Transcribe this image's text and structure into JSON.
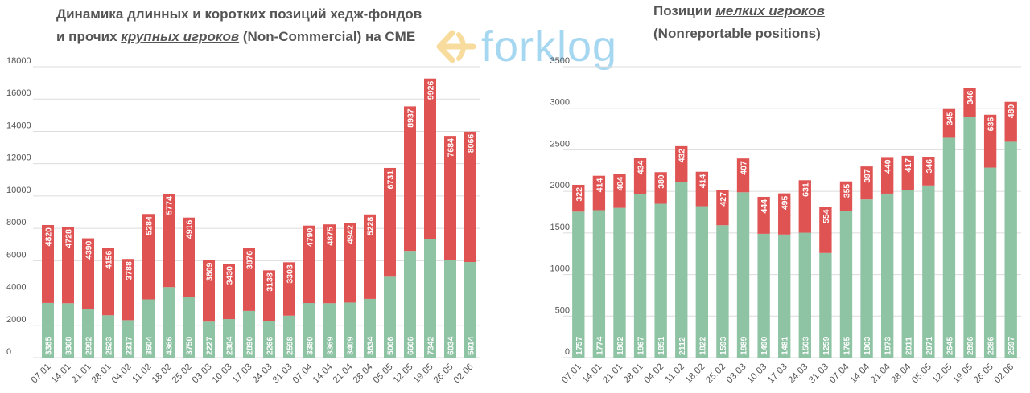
{
  "left_title": {
    "line1": "Динамика длинных и коротких позиций хедж-фондов",
    "line2_prefix": "и прочих ",
    "line2_emph": "крупных игроков",
    "line2_suffix": " (Non-Commercial) на CME"
  },
  "right_title": {
    "line1_prefix": "Позиции ",
    "line1_emph": "мелких игроков",
    "line2": "(Nonreportable positions)"
  },
  "logo": {
    "text": "forklog",
    "icon": "forklog-arrows-icon"
  },
  "colors": {
    "long": "#8ec3a4",
    "short": "#e05353",
    "grid": "#dcdcdc",
    "axis_text": "#555555",
    "bar_label": "#ffffff"
  },
  "chart_data": [
    {
      "type": "bar",
      "stacked": true,
      "categories": [
        "07.01",
        "14.01",
        "21.01",
        "28.01",
        "04.02",
        "11.02",
        "18.02",
        "25.02",
        "03.03",
        "10.03",
        "17.03",
        "24.03",
        "31.03",
        "07.04",
        "14.04",
        "21.04",
        "28.04",
        "05.05",
        "12.05",
        "19.05",
        "26.05",
        "02.06"
      ],
      "series": [
        {
          "values": [
            3385,
            3368,
            2992,
            2623,
            2317,
            3604,
            4366,
            3750,
            2227,
            2384,
            2890,
            2266,
            2598,
            3380,
            3369,
            3409,
            3634,
            5006,
            6606,
            7342,
            6034,
            5914
          ]
        },
        {
          "values": [
            4820,
            4728,
            4390,
            4156,
            3788,
            5284,
            5774,
            4916,
            3809,
            3430,
            3876,
            3138,
            3303,
            4790,
            4875,
            4942,
            5228,
            6731,
            8937,
            9926,
            7684,
            8066
          ]
        }
      ],
      "ylim": [
        0,
        18000
      ],
      "yticks": [
        0,
        2000,
        4000,
        6000,
        8000,
        10000,
        12000,
        14000,
        16000,
        18000
      ],
      "grid": true
    },
    {
      "type": "bar",
      "stacked": true,
      "categories": [
        "07.01",
        "14.01",
        "21.01",
        "28.01",
        "04.02",
        "11.02",
        "18.02",
        "25.02",
        "03.03",
        "10.03",
        "17.03",
        "24.03",
        "31.03",
        "07.04",
        "14.04",
        "21.04",
        "28.04",
        "05.05",
        "12.05",
        "19.05",
        "26.05",
        "02.06"
      ],
      "series": [
        {
          "values": [
            1757,
            1774,
            1802,
            1967,
            1851,
            2112,
            1822,
            1593,
            1989,
            1490,
            1481,
            1503,
            1259,
            1765,
            1903,
            1973,
            2011,
            2071,
            2645,
            2896,
            2286,
            2597
          ]
        },
        {
          "values": [
            322,
            414,
            404,
            434,
            380,
            432,
            414,
            427,
            407,
            444,
            495,
            631,
            554,
            355,
            397,
            440,
            417,
            346,
            345,
            346,
            636,
            480
          ]
        }
      ],
      "ylim": [
        0,
        3500
      ],
      "yticks": [
        0,
        500,
        1000,
        1500,
        2000,
        2500,
        3000,
        3500
      ],
      "grid": true
    }
  ]
}
